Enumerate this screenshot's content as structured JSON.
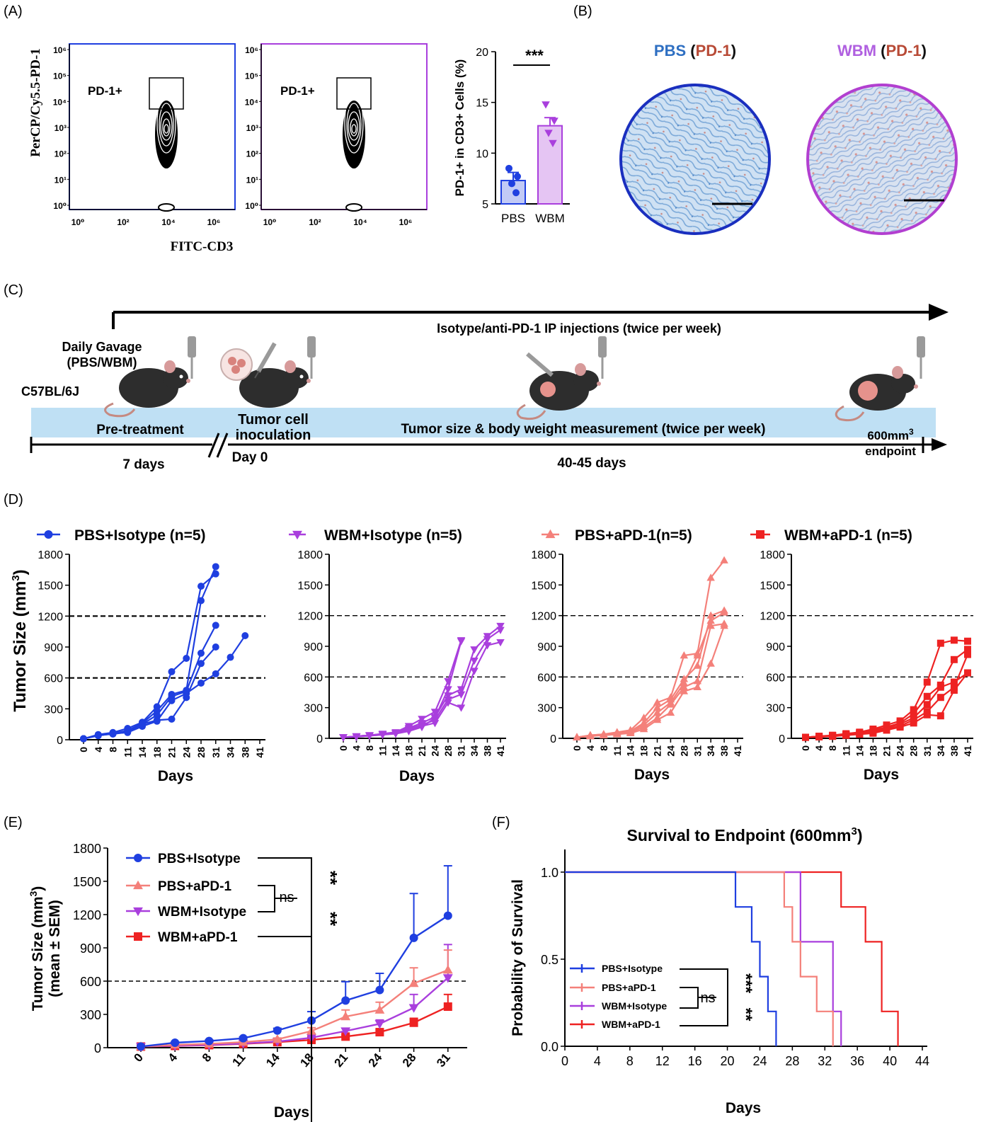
{
  "panel_labels": {
    "a": "(A)",
    "b": "(B)",
    "c": "(C)",
    "d": "(D)",
    "e": "(E)",
    "f": "(F)"
  },
  "colors": {
    "pbs_isotype": "#1f3fe0",
    "wbm_isotype": "#a93fdd",
    "pbs_apd1": "#f4807a",
    "wbm_apd1": "#ee2222",
    "timeline_band": "#bfe0f4",
    "ihc_blue": "#2e6fc2",
    "ihc_red": "#b84a36"
  },
  "panel_a": {
    "flow_y_label": "PerCP/Cy5.5-PD-1",
    "flow_x_label": "FITC-CD3",
    "flow_y_ticks": [
      "10⁰",
      "10¹",
      "10²",
      "10³",
      "10⁴",
      "10⁵",
      "10⁶"
    ],
    "flow_x_ticks": [
      "10⁰",
      "10²",
      "10⁴",
      "10⁶"
    ],
    "gate_label_1": "PD-1+",
    "gate_label_2": "PD-1+",
    "bar_significance": "***"
  },
  "panel_b": {
    "pbs_label": "PBS",
    "wbm_label": "WBM",
    "stain_open": " (",
    "stain_label": "PD-1",
    "stain_close": ")"
  },
  "panel_c": {
    "strain": "C57BL/6J",
    "gavage_line1": "Daily Gavage",
    "gavage_line2": "(PBS/WBM)",
    "injection_text": "Isotype/anti-PD-1 IP injections (twice per week)",
    "pretreatment": "Pre-treatment",
    "inoculation_line1": "Tumor cell",
    "inoculation_line2": "inoculation",
    "measurement": "Tumor size & body weight measurement (twice per week)",
    "endpoint_line1": "600mm",
    "endpoint_sup": "3",
    "endpoint_line2": "endpoint",
    "pre_days": "7 days",
    "day0": "Day 0",
    "study_days": "40-45 days"
  },
  "panel_d": {
    "ylabel": "Tumor Size (mm",
    "ylabel_sup": "3",
    "ylabel_end": ")",
    "xlabel": "Days",
    "groups": [
      {
        "legend": "PBS+Isotype (n=5)",
        "marker": "circle"
      },
      {
        "legend": "WBM+Isotype (n=5)",
        "marker": "triangle-down"
      },
      {
        "legend": "PBS+aPD-1(n=5)",
        "marker": "triangle-up"
      },
      {
        "legend": "WBM+aPD-1 (n=5)",
        "marker": "square"
      }
    ]
  },
  "panel_e": {
    "ylabel_line1": "Tumor Size (mm",
    "ylabel_sup": "3",
    "ylabel_end": ")",
    "ylabel_line2": "(mean ± SEM)",
    "xlabel": "Days",
    "ns": "ns",
    "stars_1": "**",
    "stars_2": "**"
  },
  "panel_f": {
    "title": "Survival to Endpoint (600mm",
    "title_sup": "3",
    "title_end": ")",
    "ylabel": "Probability of Survival",
    "xlabel": "Days",
    "ns": "ns",
    "stars_1": "***",
    "stars_2": "**"
  },
  "chart_data": [
    {
      "id": "A-bar",
      "type": "bar",
      "categories": [
        "PBS",
        "WBM"
      ],
      "ylabel": "PD-1+ in CD3+ Cells (%)",
      "ylim": [
        5,
        20
      ],
      "yticks": [
        5,
        10,
        15,
        20
      ],
      "values": [
        7.3,
        12.7
      ],
      "sem": [
        0.8,
        0.8
      ],
      "points": [
        [
          8.5,
          7.7,
          7.0,
          6.1
        ],
        [
          14.8,
          13.2,
          12.0,
          11.0
        ]
      ],
      "annotation": "***"
    },
    {
      "id": "D-PBS+Isotype",
      "type": "line",
      "legend": "PBS+Isotype (n=5)",
      "xlabel": "Days",
      "ylabel": "Tumor Size (mm3)",
      "ylim": [
        0,
        1800
      ],
      "yticks": [
        0,
        300,
        600,
        900,
        1200,
        1500,
        1800
      ],
      "xticks": [
        0,
        4,
        8,
        11,
        14,
        18,
        21,
        24,
        28,
        31,
        34,
        38,
        41
      ],
      "reference_lines": [
        600,
        1200
      ],
      "series": [
        {
          "x": [
            0,
            4,
            8,
            11,
            14,
            18,
            21,
            24,
            28,
            31
          ],
          "values": [
            10,
            50,
            70,
            110,
            170,
            320,
            660,
            790,
            1490,
            1610
          ]
        },
        {
          "x": [
            0,
            4,
            8,
            11,
            14,
            18,
            21,
            24,
            28,
            31
          ],
          "values": [
            10,
            40,
            60,
            90,
            160,
            280,
            440,
            480,
            1350,
            1680
          ]
        },
        {
          "x": [
            0,
            4,
            8,
            11,
            14,
            18,
            21,
            24,
            28,
            31
          ],
          "values": [
            10,
            45,
            65,
            80,
            150,
            240,
            420,
            470,
            840,
            1110
          ]
        },
        {
          "x": [
            0,
            4,
            8,
            11,
            14,
            18,
            21,
            24,
            28,
            31
          ],
          "values": [
            10,
            45,
            55,
            75,
            150,
            190,
            200,
            410,
            740,
            900
          ]
        },
        {
          "x": [
            0,
            4,
            8,
            11,
            14,
            18,
            21,
            24,
            28,
            31,
            34,
            38
          ],
          "values": [
            10,
            40,
            60,
            70,
            130,
            180,
            380,
            450,
            550,
            640,
            800,
            1010
          ]
        }
      ]
    },
    {
      "id": "D-WBM+Isotype",
      "type": "line",
      "legend": "WBM+Isotype (n=5)",
      "xlabel": "Days",
      "ylabel": "Tumor Size (mm3)",
      "ylim": [
        0,
        1800
      ],
      "yticks": [
        0,
        300,
        600,
        900,
        1200,
        1500,
        1800
      ],
      "xticks": [
        0,
        4,
        8,
        11,
        14,
        18,
        21,
        24,
        28,
        31,
        34,
        38,
        41
      ],
      "reference_lines": [
        600,
        1200
      ],
      "series": [
        {
          "x": [
            0,
            4,
            8,
            11,
            14,
            18,
            21,
            24,
            28,
            31
          ],
          "values": [
            10,
            20,
            30,
            45,
            60,
            120,
            190,
            260,
            560,
            960
          ]
        },
        {
          "x": [
            0,
            4,
            8,
            11,
            14,
            18,
            21,
            24,
            28,
            31,
            34,
            38,
            41
          ],
          "values": [
            10,
            20,
            30,
            40,
            55,
            100,
            150,
            210,
            420,
            480,
            870,
            1000,
            1100
          ]
        },
        {
          "x": [
            0,
            4,
            8,
            11,
            14,
            18,
            21,
            24,
            28,
            31,
            34,
            38,
            41
          ],
          "values": [
            10,
            20,
            30,
            40,
            50,
            90,
            130,
            180,
            380,
            430,
            760,
            970,
            1060
          ]
        },
        {
          "x": [
            0,
            4,
            8,
            11,
            14,
            18,
            21,
            24,
            28,
            31,
            34,
            38,
            41
          ],
          "values": [
            10,
            15,
            25,
            35,
            50,
            80,
            120,
            150,
            350,
            300,
            660,
            910,
            940
          ]
        },
        {
          "x": [
            0,
            4,
            8,
            11,
            14,
            18,
            21,
            24,
            28,
            31
          ],
          "values": [
            10,
            15,
            25,
            35,
            45,
            70,
            110,
            200,
            480,
            950
          ]
        }
      ]
    },
    {
      "id": "D-PBS+aPD-1",
      "type": "line",
      "legend": "PBS+aPD-1(n=5)",
      "xlabel": "Days",
      "ylabel": "Tumor Size (mm3)",
      "ylim": [
        0,
        1800
      ],
      "yticks": [
        0,
        300,
        600,
        900,
        1200,
        1500,
        1800
      ],
      "xticks": [
        0,
        4,
        8,
        11,
        14,
        18,
        21,
        24,
        28,
        31,
        34,
        38,
        41
      ],
      "reference_lines": [
        600,
        1200
      ],
      "series": [
        {
          "x": [
            0,
            4,
            8,
            11,
            14,
            18,
            21,
            24,
            28,
            31,
            34,
            38
          ],
          "values": [
            10,
            30,
            40,
            60,
            80,
            200,
            350,
            400,
            810,
            830,
            1570,
            1740
          ]
        },
        {
          "x": [
            0,
            4,
            8,
            11,
            14,
            18,
            21,
            24,
            28,
            31,
            34,
            38
          ],
          "values": [
            10,
            30,
            40,
            50,
            70,
            150,
            300,
            380,
            580,
            710,
            1200,
            1250
          ]
        },
        {
          "x": [
            0,
            4,
            8,
            11,
            14,
            18,
            21,
            24,
            28,
            31,
            34,
            38
          ],
          "values": [
            10,
            25,
            35,
            45,
            70,
            130,
            250,
            350,
            540,
            810,
            1150,
            1230
          ]
        },
        {
          "x": [
            0,
            4,
            8,
            11,
            14,
            18,
            21,
            24,
            28,
            31,
            34,
            38
          ],
          "values": [
            10,
            25,
            30,
            40,
            60,
            110,
            200,
            330,
            500,
            560,
            1100,
            1120
          ]
        },
        {
          "x": [
            0,
            4,
            8,
            11,
            14,
            18,
            21,
            24,
            28,
            31,
            34,
            38
          ],
          "values": [
            10,
            20,
            30,
            40,
            50,
            90,
            180,
            250,
            460,
            500,
            730,
            1100
          ]
        }
      ]
    },
    {
      "id": "D-WBM+aPD-1",
      "type": "line",
      "legend": "WBM+aPD-1 (n=5)",
      "xlabel": "Days",
      "ylabel": "Tumor Size (mm3)",
      "ylim": [
        0,
        1800
      ],
      "yticks": [
        0,
        300,
        600,
        900,
        1200,
        1500,
        1800
      ],
      "xticks": [
        0,
        4,
        8,
        11,
        14,
        18,
        21,
        24,
        28,
        31,
        34,
        38,
        41
      ],
      "reference_lines": [
        600,
        1200
      ],
      "series": [
        {
          "x": [
            0,
            4,
            8,
            11,
            14,
            18,
            21,
            24,
            28,
            31,
            34,
            38,
            41
          ],
          "values": [
            10,
            20,
            30,
            45,
            60,
            90,
            130,
            170,
            280,
            550,
            930,
            960,
            950
          ]
        },
        {
          "x": [
            0,
            4,
            8,
            11,
            14,
            18,
            21,
            24,
            28,
            31,
            34,
            38,
            41
          ],
          "values": [
            10,
            20,
            25,
            40,
            55,
            80,
            110,
            150,
            240,
            410,
            520,
            770,
            870
          ]
        },
        {
          "x": [
            0,
            4,
            8,
            11,
            14,
            18,
            21,
            24,
            28,
            31,
            34,
            38,
            41
          ],
          "values": [
            10,
            15,
            25,
            35,
            50,
            70,
            100,
            140,
            200,
            330,
            500,
            550,
            640
          ]
        },
        {
          "x": [
            0,
            4,
            8,
            11,
            14,
            18,
            21,
            24,
            28,
            31,
            34,
            38,
            41
          ],
          "values": [
            10,
            15,
            20,
            30,
            45,
            60,
            90,
            120,
            180,
            260,
            400,
            500,
            820
          ]
        },
        {
          "x": [
            0,
            4,
            8,
            11,
            14,
            18,
            21,
            24,
            28,
            31,
            34,
            38,
            41
          ],
          "values": [
            10,
            15,
            20,
            30,
            40,
            50,
            80,
            110,
            150,
            230,
            220,
            470,
            640
          ]
        }
      ]
    },
    {
      "id": "E",
      "type": "line",
      "xlabel": "Days",
      "ylabel": "Tumor Size (mm3) (mean ± SEM)",
      "ylim": [
        0,
        1800
      ],
      "yticks": [
        0,
        300,
        600,
        900,
        1200,
        1500,
        1800
      ],
      "x": [
        0,
        4,
        8,
        11,
        14,
        18,
        21,
        24,
        28,
        31
      ],
      "reference_lines": [
        600
      ],
      "series": [
        {
          "name": "PBS+Isotype",
          "values": [
            10,
            45,
            60,
            85,
            155,
            245,
            425,
            520,
            990,
            1190
          ],
          "sem": [
            0,
            8,
            10,
            12,
            20,
            80,
            170,
            150,
            400,
            450
          ]
        },
        {
          "name": "PBS+aPD-1",
          "values": [
            10,
            25,
            35,
            50,
            75,
            150,
            280,
            340,
            580,
            700
          ],
          "sem": [
            0,
            5,
            6,
            8,
            12,
            30,
            60,
            70,
            140,
            180
          ]
        },
        {
          "name": "WBM+Isotype",
          "values": [
            10,
            18,
            25,
            38,
            55,
            90,
            150,
            215,
            360,
            630
          ],
          "sem": [
            0,
            4,
            5,
            6,
            8,
            15,
            25,
            35,
            120,
            300
          ]
        },
        {
          "name": "WBM+aPD-1",
          "values": [
            10,
            16,
            23,
            35,
            50,
            70,
            100,
            140,
            225,
            370
          ],
          "sem": [
            0,
            3,
            4,
            5,
            7,
            10,
            15,
            20,
            40,
            110
          ]
        }
      ],
      "annotations": [
        "ns",
        "**",
        "**"
      ]
    },
    {
      "id": "F",
      "type": "line",
      "title": "Survival to Endpoint (600mm3)",
      "xlabel": "Days",
      "ylabel": "Probability of Survival",
      "xlim": [
        0,
        44
      ],
      "ylim": [
        0,
        1
      ],
      "xticks": [
        0,
        4,
        8,
        12,
        16,
        20,
        24,
        28,
        32,
        36,
        40,
        44
      ],
      "yticks": [
        0.0,
        0.5,
        1.0
      ],
      "series": [
        {
          "name": "PBS+Isotype",
          "x": [
            0,
            21,
            23,
            24,
            25,
            26
          ],
          "values": [
            1.0,
            0.8,
            0.6,
            0.4,
            0.2,
            0.0
          ]
        },
        {
          "name": "PBS+aPD-1",
          "x": [
            0,
            27,
            28,
            29,
            31,
            33
          ],
          "values": [
            1.0,
            0.8,
            0.6,
            0.4,
            0.2,
            0.0
          ]
        },
        {
          "name": "WBM+Isotype",
          "x": [
            0,
            29,
            33,
            34
          ],
          "values": [
            1.0,
            0.6,
            0.2,
            0.0
          ]
        },
        {
          "name": "WBM+aPD-1",
          "x": [
            0,
            34,
            37,
            39,
            41
          ],
          "values": [
            1.0,
            0.8,
            0.6,
            0.2,
            0.0
          ]
        }
      ],
      "annotations": [
        "ns",
        "***",
        "**"
      ]
    }
  ]
}
